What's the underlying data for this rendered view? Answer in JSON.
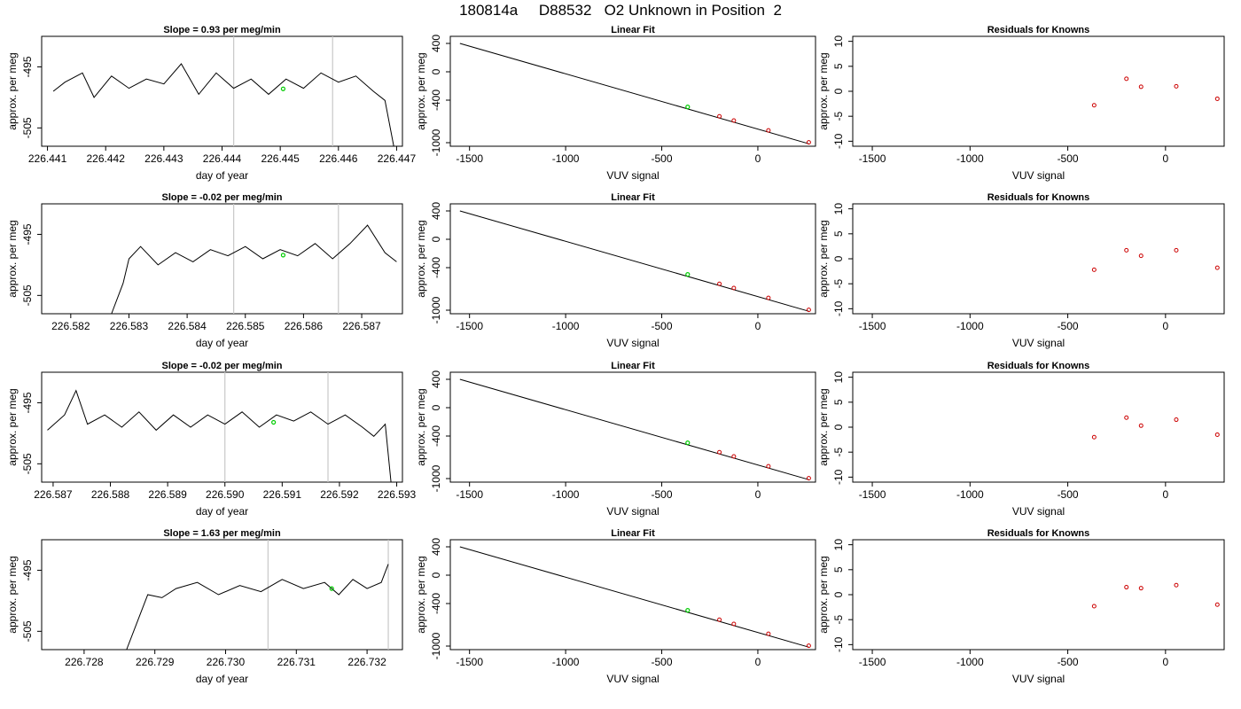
{
  "figure": {
    "title": "180814a     D88532   O2 Unknown in Position  2",
    "colors": {
      "line": "#000000",
      "reference_lines": "#c8c8c8",
      "unknown_point": "#00cc00",
      "known_points": "#cc0000",
      "axes": "#000000"
    }
  },
  "chart_data": [
    {
      "type": "line",
      "row": 1,
      "panel": "timeseries",
      "title": "Slope =  0.93  per meg/min",
      "xlabel": "day of year",
      "ylabel": "approx. per meg",
      "xlim": [
        226.4409,
        226.4471
      ],
      "ylim": [
        -508,
        -490
      ],
      "x_ticks": [
        "226.441",
        "226.442",
        "226.443",
        "226.444",
        "226.445",
        "226.446",
        "226.447"
      ],
      "y_ticks": [
        "-495",
        "-505"
      ],
      "reference_lines_x": [
        226.4442,
        226.4459
      ],
      "highlight": {
        "x": 226.44505,
        "y": -498.6
      },
      "series": [
        {
          "x": [
            226.4411,
            226.4413,
            226.4416,
            226.4418,
            226.4421,
            226.4424,
            226.4427,
            226.443,
            226.4433,
            226.4436,
            226.4439,
            226.4442,
            226.4445,
            226.4448,
            226.4451,
            226.4454,
            226.4457,
            226.446,
            226.4463,
            226.4466,
            226.4468,
            226.44695
          ],
          "y": [
            -499,
            -497.5,
            -496,
            -500,
            -496.5,
            -498.5,
            -497,
            -497.8,
            -494.5,
            -499.5,
            -496,
            -498.5,
            -497,
            -499.5,
            -497,
            -498.5,
            -496,
            -497.5,
            -496.5,
            -499,
            -500.5,
            -508
          ]
        }
      ]
    },
    {
      "type": "scatter",
      "row": 1,
      "panel": "fit",
      "title": "Linear Fit",
      "xlabel": "VUV signal",
      "ylabel": "approx. per meg",
      "xlim": [
        -1600,
        300
      ],
      "ylim": [
        -1050,
        500
      ],
      "x_ticks": [
        "-1500",
        "-1000",
        "-500",
        "0"
      ],
      "y_ticks": [
        "400",
        "0",
        "-400",
        "-1000"
      ],
      "fit_line": {
        "x": [
          -1550,
          265
        ],
        "y": [
          400,
          -1015
        ]
      },
      "unknown": {
        "x": [
          -365
        ],
        "y": [
          -495
        ]
      },
      "knowns": {
        "x": [
          -200,
          -125,
          55,
          265
        ],
        "y": [
          -628,
          -688,
          -827,
          -995
        ]
      }
    },
    {
      "type": "scatter",
      "row": 1,
      "panel": "residuals",
      "title": "Residuals for Knowns",
      "xlabel": "VUV signal",
      "ylabel": "approx. per meg",
      "xlim": [
        -1600,
        300
      ],
      "ylim": [
        -11,
        11
      ],
      "x_ticks": [
        "-1500",
        "-1000",
        "-500",
        "0"
      ],
      "y_ticks": [
        "10",
        "5",
        "0",
        "-5",
        "-10"
      ],
      "knowns": {
        "x": [
          -365,
          -200,
          -125,
          55,
          265
        ],
        "y": [
          -2.8,
          2.5,
          0.9,
          1.0,
          -1.5
        ]
      }
    },
    {
      "type": "line",
      "row": 2,
      "panel": "timeseries",
      "title": "Slope =  -0.02  per meg/min",
      "xlabel": "day of year",
      "ylabel": "approx. per meg",
      "xlim": [
        226.5815,
        226.5877
      ],
      "ylim": [
        -508,
        -490
      ],
      "x_ticks": [
        "226.582",
        "226.583",
        "226.584",
        "226.585",
        "226.586",
        "226.587"
      ],
      "y_ticks": [
        "-495",
        "-505"
      ],
      "reference_lines_x": [
        226.5848,
        226.5866
      ],
      "highlight": {
        "x": 226.58565,
        "y": -498.4
      },
      "series": [
        {
          "x": [
            226.5827,
            226.5829,
            226.583,
            226.5832,
            226.5835,
            226.5838,
            226.5841,
            226.5844,
            226.5847,
            226.585,
            226.5853,
            226.5856,
            226.5859,
            226.5862,
            226.5865,
            226.5868,
            226.5871,
            226.5874,
            226.5876
          ],
          "y": [
            -508,
            -503,
            -499,
            -497,
            -500,
            -498,
            -499.5,
            -497.5,
            -498.5,
            -497,
            -499,
            -497.5,
            -498.5,
            -496.5,
            -499,
            -496.5,
            -493.5,
            -498,
            -499.5
          ]
        }
      ]
    },
    {
      "type": "scatter",
      "row": 2,
      "panel": "fit",
      "title": "Linear Fit",
      "xlabel": "VUV signal",
      "ylabel": "approx. per meg",
      "xlim": [
        -1600,
        300
      ],
      "ylim": [
        -1050,
        500
      ],
      "x_ticks": [
        "-1500",
        "-1000",
        "-500",
        "0"
      ],
      "y_ticks": [
        "400",
        "0",
        "-400",
        "-1000"
      ],
      "fit_line": {
        "x": [
          -1550,
          265
        ],
        "y": [
          400,
          -1015
        ]
      },
      "unknown": {
        "x": [
          -365
        ],
        "y": [
          -495
        ]
      },
      "knowns": {
        "x": [
          -200,
          -125,
          55,
          265
        ],
        "y": [
          -628,
          -688,
          -827,
          -995
        ]
      }
    },
    {
      "type": "scatter",
      "row": 2,
      "panel": "residuals",
      "title": "Residuals for Knowns",
      "xlabel": "VUV signal",
      "ylabel": "approx. per meg",
      "xlim": [
        -1600,
        300
      ],
      "ylim": [
        -11,
        11
      ],
      "x_ticks": [
        "-1500",
        "-1000",
        "-500",
        "0"
      ],
      "y_ticks": [
        "10",
        "5",
        "0",
        "-5",
        "-10"
      ],
      "knowns": {
        "x": [
          -365,
          -200,
          -125,
          55,
          265
        ],
        "y": [
          -2.2,
          1.7,
          0.6,
          1.7,
          -1.8
        ]
      }
    },
    {
      "type": "line",
      "row": 3,
      "panel": "timeseries",
      "title": "Slope =  -0.02  per meg/min",
      "xlabel": "day of year",
      "ylabel": "approx. per meg",
      "xlim": [
        226.5868,
        226.5931
      ],
      "ylim": [
        -508,
        -490
      ],
      "x_ticks": [
        "226.587",
        "226.588",
        "226.589",
        "226.590",
        "226.591",
        "226.592",
        "226.593"
      ],
      "y_ticks": [
        "-495",
        "-505"
      ],
      "reference_lines_x": [
        226.59,
        226.5918
      ],
      "highlight": {
        "x": 226.59085,
        "y": -498.2
      },
      "series": [
        {
          "x": [
            226.5869,
            226.5872,
            226.5874,
            226.5876,
            226.5879,
            226.5882,
            226.5885,
            226.5888,
            226.5891,
            226.5894,
            226.5897,
            226.59,
            226.5903,
            226.5906,
            226.5909,
            226.5912,
            226.5915,
            226.5918,
            226.5921,
            226.5924,
            226.5926,
            226.5928,
            226.5929
          ],
          "y": [
            -499.5,
            -497,
            -493,
            -498.5,
            -497,
            -499,
            -496.5,
            -499.5,
            -497,
            -499,
            -497,
            -498.5,
            -496.5,
            -499,
            -497,
            -498,
            -496.5,
            -498.5,
            -497,
            -499,
            -500.5,
            -498.5,
            -508
          ]
        }
      ]
    },
    {
      "type": "scatter",
      "row": 3,
      "panel": "fit",
      "title": "Linear Fit",
      "xlabel": "VUV signal",
      "ylabel": "approx. per meg",
      "xlim": [
        -1600,
        300
      ],
      "ylim": [
        -1050,
        500
      ],
      "x_ticks": [
        "-1500",
        "-1000",
        "-500",
        "0"
      ],
      "y_ticks": [
        "400",
        "0",
        "-400",
        "-1000"
      ],
      "fit_line": {
        "x": [
          -1550,
          265
        ],
        "y": [
          400,
          -1015
        ]
      },
      "unknown": {
        "x": [
          -365
        ],
        "y": [
          -495
        ]
      },
      "knowns": {
        "x": [
          -200,
          -125,
          55,
          265
        ],
        "y": [
          -628,
          -688,
          -827,
          -995
        ]
      }
    },
    {
      "type": "scatter",
      "row": 3,
      "panel": "residuals",
      "title": "Residuals for Knowns",
      "xlabel": "VUV signal",
      "ylabel": "approx. per meg",
      "xlim": [
        -1600,
        300
      ],
      "ylim": [
        -11,
        11
      ],
      "x_ticks": [
        "-1500",
        "-1000",
        "-500",
        "0"
      ],
      "y_ticks": [
        "10",
        "5",
        "0",
        "-5",
        "-10"
      ],
      "knowns": {
        "x": [
          -365,
          -200,
          -125,
          55,
          265
        ],
        "y": [
          -2.0,
          1.9,
          0.3,
          1.5,
          -1.5
        ]
      }
    },
    {
      "type": "line",
      "row": 4,
      "panel": "timeseries",
      "title": "Slope =  1.63  per meg/min",
      "xlabel": "day of year",
      "ylabel": "approx. per meg",
      "xlim": [
        226.7274,
        226.7325
      ],
      "ylim": [
        -508,
        -490
      ],
      "x_ticks": [
        "226.728",
        "226.729",
        "226.730",
        "226.731",
        "226.732"
      ],
      "y_ticks": [
        "-495",
        "-505"
      ],
      "reference_lines_x": [
        226.7306,
        226.7323
      ],
      "highlight": {
        "x": 226.7315,
        "y": -498.0
      },
      "series": [
        {
          "x": [
            226.7286,
            226.7288,
            226.7289,
            226.7291,
            226.7293,
            226.7296,
            226.7299,
            226.7302,
            226.7305,
            226.7308,
            226.7311,
            226.7314,
            226.7316,
            226.7318,
            226.732,
            226.7322,
            226.7323
          ],
          "y": [
            -508,
            -502,
            -499,
            -499.5,
            -498,
            -497,
            -499,
            -497.5,
            -498.5,
            -496.5,
            -498,
            -497,
            -499,
            -496.5,
            -498,
            -497,
            -494
          ]
        }
      ]
    },
    {
      "type": "scatter",
      "row": 4,
      "panel": "fit",
      "title": "Linear Fit",
      "xlabel": "VUV signal",
      "ylabel": "approx. per meg",
      "xlim": [
        -1600,
        300
      ],
      "ylim": [
        -1050,
        500
      ],
      "x_ticks": [
        "-1500",
        "-1000",
        "-500",
        "0"
      ],
      "y_ticks": [
        "400",
        "0",
        "-400",
        "-1000"
      ],
      "fit_line": {
        "x": [
          -1550,
          265
        ],
        "y": [
          400,
          -1015
        ]
      },
      "unknown": {
        "x": [
          -365
        ],
        "y": [
          -495
        ]
      },
      "knowns": {
        "x": [
          -200,
          -125,
          55,
          265
        ],
        "y": [
          -628,
          -688,
          -827,
          -995
        ]
      }
    },
    {
      "type": "scatter",
      "row": 4,
      "panel": "residuals",
      "title": "Residuals for Knowns",
      "xlabel": "VUV signal",
      "ylabel": "approx. per meg",
      "xlim": [
        -1600,
        300
      ],
      "ylim": [
        -11,
        11
      ],
      "x_ticks": [
        "-1500",
        "-1000",
        "-500",
        "0"
      ],
      "y_ticks": [
        "10",
        "5",
        "0",
        "-5",
        "-10"
      ],
      "knowns": {
        "x": [
          -365,
          -200,
          -125,
          55,
          265
        ],
        "y": [
          -2.3,
          1.5,
          1.3,
          1.9,
          -2.0
        ]
      }
    }
  ]
}
